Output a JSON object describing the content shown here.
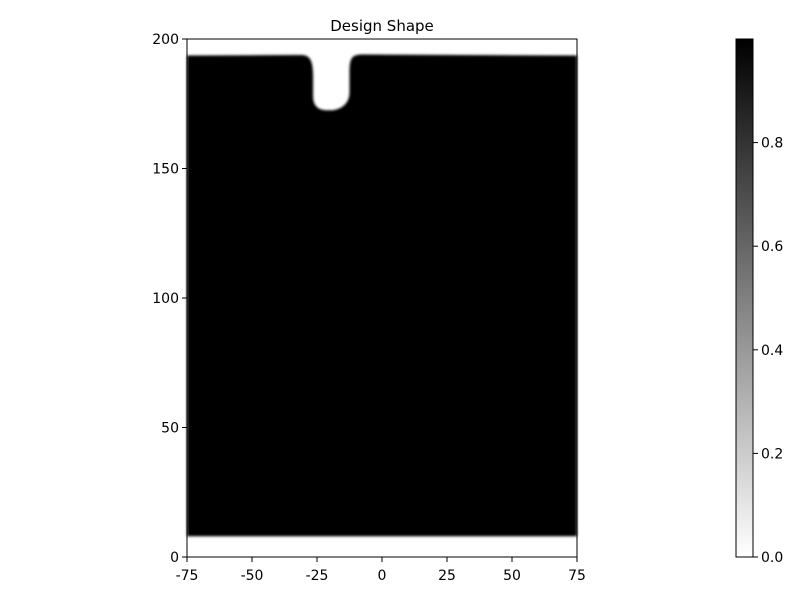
{
  "chart_data": {
    "type": "heatmap",
    "title": "Design Shape",
    "xlabel": "",
    "ylabel": "",
    "xlim": [
      -75,
      75
    ],
    "ylim": [
      0,
      200
    ],
    "xticks": [
      -75,
      -50,
      -25,
      0,
      25,
      50,
      75
    ],
    "yticks": [
      0,
      50,
      100,
      150,
      200
    ],
    "colormap": "grayscale (0 = white, 1 = black)",
    "colorbar": {
      "range": [
        0,
        1
      ],
      "ticks": [
        0.0,
        0.2,
        0.4,
        0.6,
        0.8
      ],
      "tick_labels": [
        "0.0",
        "0.2",
        "0.4",
        "0.6",
        "0.8"
      ]
    },
    "field": {
      "fill_value": 1.0,
      "background_value": 0.0,
      "solid_y_range": [
        8,
        194
      ],
      "notch": {
        "center_x": -19.5,
        "bottom_y": 172.5,
        "half_width": 7,
        "top_flare_x": [
          -28,
          -12
        ]
      }
    },
    "colors": {
      "fill": "#000000",
      "background": "#ffffff",
      "axis": "#000000"
    }
  }
}
